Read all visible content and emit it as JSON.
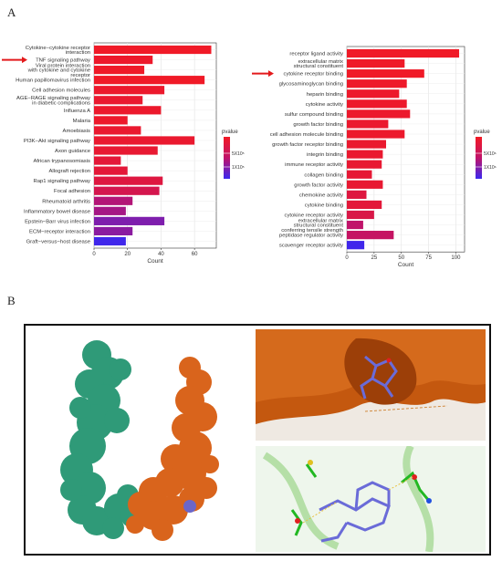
{
  "panel_labels": {
    "a": "A",
    "b": "B"
  },
  "colors": {
    "high": "#f21a24",
    "mid": "#c0136a",
    "low": "#3b28f0",
    "arrow": "#e31a1c"
  },
  "chart_data": [
    {
      "type": "bar",
      "orientation": "horizontal",
      "xlabel": "Count",
      "xlim": [
        0,
        73
      ],
      "xticks": [
        0,
        20,
        40,
        60
      ],
      "grid": true,
      "legend": {
        "title": "pvalue",
        "labels": [
          "5X10⁵",
          "1X10⁵"
        ],
        "placement": "right"
      },
      "highlighted_category": "TNF signaling pathway",
      "categories": [
        [
          "Cytokine−cytokine receptor",
          "interaction"
        ],
        [
          "TNF signaling pathway"
        ],
        [
          "Viral protein interaction",
          "with cytokine and cytokine",
          "receptor"
        ],
        [
          "Human papillomavirus infection"
        ],
        [
          "Cell adhesion molecules"
        ],
        [
          "AGE−RAGE signaling pathway",
          "in diabetic complications"
        ],
        [
          "Influenza A"
        ],
        [
          "Malaria"
        ],
        [
          "Amoebiasis"
        ],
        [
          "PI3K−Akt signaling pathway"
        ],
        [
          "Axon guidance"
        ],
        [
          "African trypanosomiasis"
        ],
        [
          "Allograft rejection"
        ],
        [
          "Rap1 signaling pathway"
        ],
        [
          "Focal adhesion"
        ],
        [
          "Rheumatoid arthritis"
        ],
        [
          "Inflammatory bowel disease"
        ],
        [
          "Epstein−Barr virus infection"
        ],
        [
          "ECM−receptor interaction"
        ],
        [
          "Graft−versus−host disease"
        ]
      ],
      "values": [
        70,
        35,
        30,
        66,
        42,
        29,
        40,
        20,
        28,
        60,
        38,
        16,
        20,
        41,
        39,
        23,
        19,
        42,
        23,
        19
      ],
      "color_levels": [
        0.02,
        0.05,
        0.03,
        0.02,
        0.06,
        0.08,
        0.06,
        0.05,
        0.08,
        0.08,
        0.1,
        0.14,
        0.14,
        0.2,
        0.3,
        0.55,
        0.6,
        0.75,
        0.7,
        0.98
      ]
    },
    {
      "type": "bar",
      "orientation": "horizontal",
      "xlabel": "Count",
      "xlim": [
        0,
        108
      ],
      "xticks": [
        0,
        25,
        50,
        75,
        100
      ],
      "grid": true,
      "legend": {
        "title": "pvalue",
        "labels": [
          "5X10⁶",
          "1X10⁶"
        ],
        "placement": "right"
      },
      "highlighted_category": "cytokine receptor binding",
      "categories": [
        [
          "receptor ligand activity"
        ],
        [
          "extracellular matrix",
          "structural constituent"
        ],
        [
          "cytokine receptor binding"
        ],
        [
          "glycosaminoglycan binding"
        ],
        [
          "heparin binding"
        ],
        [
          "cytokine activity"
        ],
        [
          "sulfur compound binding"
        ],
        [
          "growth factor binding"
        ],
        [
          "cell adhesion molecule binding"
        ],
        [
          "growth factor receptor binding"
        ],
        [
          "integrin binding"
        ],
        [
          "immune receptor activity"
        ],
        [
          "collagen binding"
        ],
        [
          "growth factor activity"
        ],
        [
          "chemokine activity"
        ],
        [
          "cytokine binding"
        ],
        [
          "cytokine receptor activity"
        ],
        [
          "extracellular matrix",
          "structural constituent",
          "conferring tensile strength"
        ],
        [
          "peptidase regulator activity"
        ],
        [
          "scavenger receptor activity"
        ]
      ],
      "values": [
        103,
        53,
        71,
        55,
        48,
        55,
        58,
        38,
        53,
        36,
        33,
        32,
        23,
        33,
        18,
        32,
        25,
        15,
        43,
        16
      ],
      "color_levels": [
        0.02,
        0.03,
        0.02,
        0.04,
        0.05,
        0.05,
        0.06,
        0.07,
        0.06,
        0.08,
        0.08,
        0.1,
        0.12,
        0.1,
        0.2,
        0.15,
        0.25,
        0.5,
        0.45,
        0.98
      ]
    }
  ]
}
